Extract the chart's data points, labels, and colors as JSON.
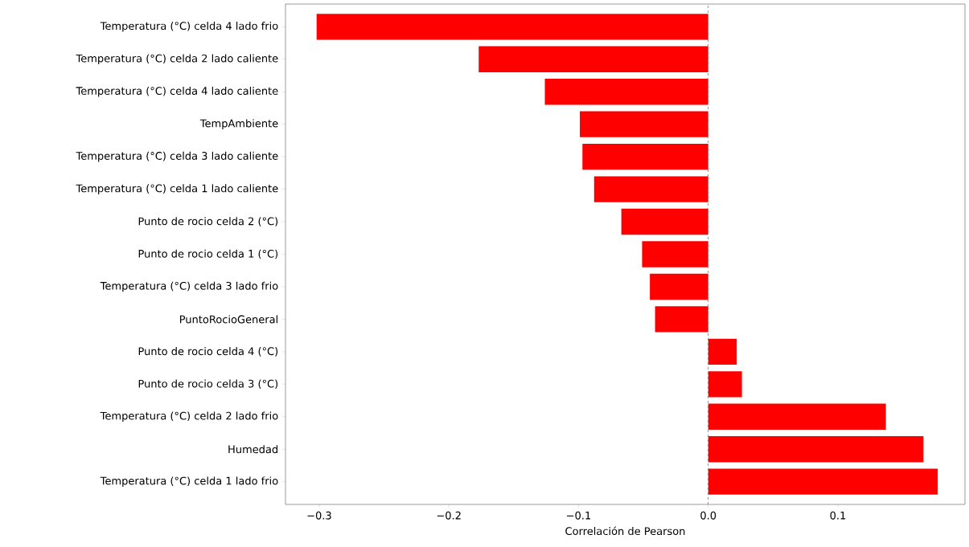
{
  "chart_data": {
    "type": "bar",
    "orientation": "horizontal",
    "xlabel": "Correlación de Pearson",
    "categories": [
      "Temperatura (°C) celda 4 lado frio",
      "Temperatura (°C) celda 2 lado caliente",
      "Temperatura (°C) celda 4 lado caliente",
      "TempAmbiente",
      "Temperatura (°C) celda 3 lado caliente",
      "Temperatura (°C) celda 1 lado caliente",
      "Punto de rocio celda 2 (°C)",
      "Punto de rocio celda 1 (°C)",
      "Temperatura (°C) celda 3 lado frio",
      "PuntoRocioGeneral",
      "Punto de rocio celda 4 (°C)",
      "Punto de rocio celda 3 (°C)",
      "Temperatura (°C) celda 2 lado frio",
      "Humedad",
      "Temperatura (°C) celda 1 lado frio"
    ],
    "values": [
      -0.302,
      -0.177,
      -0.126,
      -0.099,
      -0.097,
      -0.088,
      -0.067,
      -0.051,
      -0.045,
      -0.041,
      0.022,
      0.026,
      0.137,
      0.166,
      0.177
    ],
    "color": "#ff0000",
    "xlim": [
      -0.326,
      0.198
    ],
    "xticks": [
      {
        "value": -0.3,
        "label": "−0.3"
      },
      {
        "value": -0.2,
        "label": "−0.2"
      },
      {
        "value": -0.1,
        "label": "−0.1"
      },
      {
        "value": 0.0,
        "label": "0.0"
      },
      {
        "value": 0.1,
        "label": "0.1"
      }
    ],
    "ref_lines": [
      {
        "axis": "x",
        "value": 0,
        "color": "#808080",
        "line_style": "dashed"
      }
    ]
  }
}
